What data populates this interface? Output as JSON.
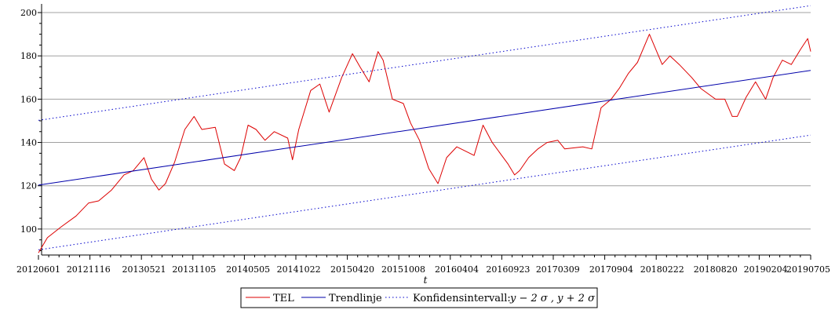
{
  "chart_data": {
    "type": "line",
    "title": "",
    "xlabel": "t",
    "ylabel": "",
    "ylim": [
      88,
      204
    ],
    "yticks": [
      100,
      120,
      140,
      160,
      180,
      200
    ],
    "grid": "horizontal",
    "xticks": [
      "20120601",
      "20121116",
      "20130521",
      "20131105",
      "20140505",
      "20141022",
      "20150420",
      "20151008",
      "20160404",
      "20160923",
      "20170309",
      "20170904",
      "20180222",
      "20180820",
      "20190204",
      "20190705"
    ],
    "legend_position": "bottom",
    "series": [
      {
        "name": "TEL",
        "color": "#dd0000",
        "style": "solid",
        "points": [
          [
            "20120601",
            89
          ],
          [
            "20120701",
            96
          ],
          [
            "20120816",
            101
          ],
          [
            "20121005",
            106
          ],
          [
            "20121116",
            112
          ],
          [
            "20121220",
            113
          ],
          [
            "20130201",
            118
          ],
          [
            "20130315",
            125
          ],
          [
            "20130415",
            127
          ],
          [
            "20130521",
            133
          ],
          [
            "20130615",
            123
          ],
          [
            "20130710",
            118
          ],
          [
            "20130801",
            121
          ],
          [
            "20130901",
            131
          ],
          [
            "20131005",
            146
          ],
          [
            "20131105",
            152
          ],
          [
            "20131201",
            146
          ],
          [
            "20140115",
            147
          ],
          [
            "20140215",
            130
          ],
          [
            "20140320",
            127
          ],
          [
            "20140410",
            133
          ],
          [
            "20140505",
            148
          ],
          [
            "20140601",
            146
          ],
          [
            "20140701",
            141
          ],
          [
            "20140801",
            145
          ],
          [
            "20140915",
            142
          ],
          [
            "20141001",
            132
          ],
          [
            "20141022",
            146
          ],
          [
            "20141201",
            164
          ],
          [
            "20150101",
            167
          ],
          [
            "20150201",
            154
          ],
          [
            "20150315",
            170
          ],
          [
            "20150420",
            181
          ],
          [
            "20150515",
            175
          ],
          [
            "20150615",
            168
          ],
          [
            "20150715",
            182
          ],
          [
            "20150801",
            178
          ],
          [
            "20150901",
            160
          ],
          [
            "20151008",
            158
          ],
          [
            "20151101",
            149
          ],
          [
            "20151201",
            141
          ],
          [
            "20160101",
            128
          ],
          [
            "20160201",
            121
          ],
          [
            "20160301",
            133
          ],
          [
            "20160404",
            138
          ],
          [
            "20160601",
            134
          ],
          [
            "20160701",
            148
          ],
          [
            "20160801",
            140
          ],
          [
            "20160923",
            130
          ],
          [
            "20161015",
            125
          ],
          [
            "20161101",
            127
          ],
          [
            "20161201",
            133
          ],
          [
            "20170101",
            137
          ],
          [
            "20170201",
            140
          ],
          [
            "20170309",
            141
          ],
          [
            "20170401",
            137
          ],
          [
            "20170601",
            138
          ],
          [
            "20170701",
            137
          ],
          [
            "20170801",
            156
          ],
          [
            "20170904",
            160
          ],
          [
            "20171001",
            165
          ],
          [
            "20171101",
            172
          ],
          [
            "20171201",
            177
          ],
          [
            "20180110",
            190
          ],
          [
            "20180222",
            176
          ],
          [
            "20180320",
            180
          ],
          [
            "20180420",
            176
          ],
          [
            "20180601",
            170
          ],
          [
            "20180701",
            165
          ],
          [
            "20180820",
            160
          ],
          [
            "20180920",
            160
          ],
          [
            "20181015",
            152
          ],
          [
            "20181101",
            152
          ],
          [
            "20181201",
            161
          ],
          [
            "20190101",
            168
          ],
          [
            "20190204",
            160
          ],
          [
            "20190301",
            170
          ],
          [
            "20190401",
            178
          ],
          [
            "20190501",
            176
          ],
          [
            "20190601",
            183
          ],
          [
            "20190625",
            188
          ],
          [
            "20190705",
            182
          ]
        ]
      },
      {
        "name": "Trendlinje",
        "color": "#0000aa",
        "style": "solid",
        "points": [
          [
            "20120601",
            120.3
          ],
          [
            "20190705",
            173.3
          ]
        ]
      },
      {
        "name": "Konfidensintervall:",
        "color": "#0000cc",
        "style": "dotted",
        "bands": [
          [
            [
              "20120601",
              150.2
            ],
            [
              "20190705",
              203.2
            ]
          ],
          [
            [
              "20120601",
              90.4
            ],
            [
              "20190705",
              143.4
            ]
          ]
        ]
      }
    ],
    "legend": [
      {
        "label": "TEL",
        "series": 0
      },
      {
        "label": "Trendlinje",
        "series": 1
      },
      {
        "label": "Konfidensintervall:",
        "series": 2,
        "math": "y − 2 σ , y + 2 σ"
      }
    ]
  }
}
